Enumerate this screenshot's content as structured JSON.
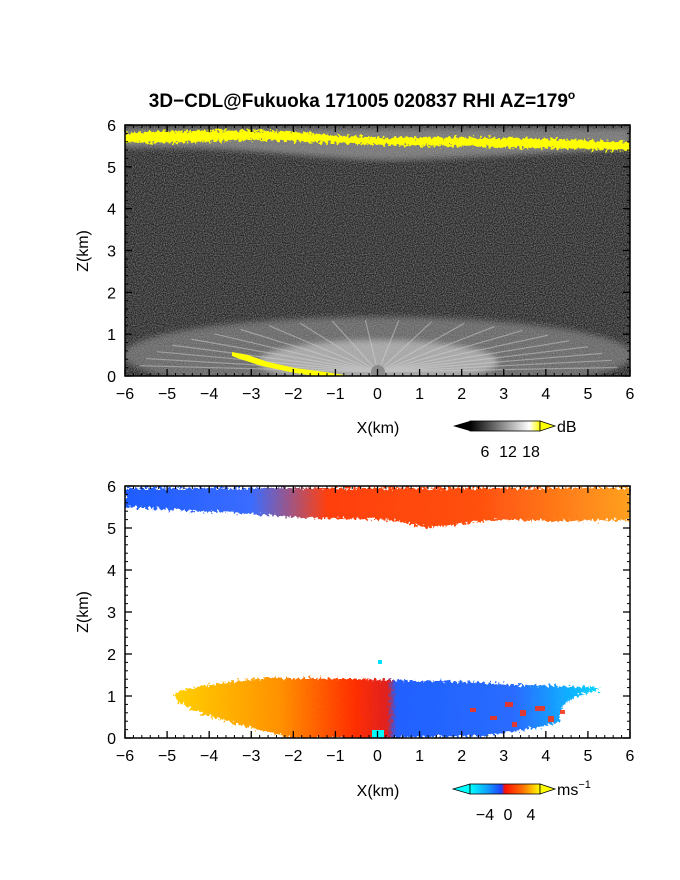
{
  "title": "3D−CDL@Fukuoka 171005 020837 RHI AZ=179",
  "title_degree": "o",
  "chart_data": [
    {
      "type": "heatmap",
      "name": "reflectivity",
      "xlabel": "X(km)",
      "ylabel": "Z(km)",
      "xlim": [
        -6,
        6
      ],
      "ylim": [
        0,
        6
      ],
      "xticks": [
        "−6",
        "−5",
        "−4",
        "−3",
        "−2",
        "−1",
        "0",
        "1",
        "2",
        "3",
        "4",
        "5",
        "6"
      ],
      "yticks": [
        "0",
        "1",
        "2",
        "3",
        "4",
        "5",
        "6"
      ],
      "colorbar": {
        "unit": "dB",
        "ticks": [
          "6",
          "12",
          "18"
        ],
        "colors": [
          "#000000",
          "#303030",
          "#606060",
          "#909090",
          "#c0c0c0",
          "#f0f0f0",
          "#ffff00"
        ]
      },
      "features": [
        {
          "label": "yellow high-return layer",
          "x_range": [
            -6,
            6
          ],
          "z_range": [
            5.3,
            5.85
          ]
        },
        {
          "label": "boundary-layer returns",
          "x_range": [
            -6,
            6
          ],
          "z_range": [
            0,
            1.3
          ]
        },
        {
          "label": "ground clutter",
          "x_range": [
            -3.3,
            -0.6
          ],
          "z_range": [
            0,
            0.55
          ]
        }
      ]
    },
    {
      "type": "heatmap",
      "name": "doppler_velocity",
      "xlabel": "X(km)",
      "ylabel": "Z(km)",
      "xlim": [
        -6,
        6
      ],
      "ylim": [
        0,
        6
      ],
      "xticks": [
        "−6",
        "−5",
        "−4",
        "−3",
        "−2",
        "−1",
        "0",
        "1",
        "2",
        "3",
        "4",
        "5",
        "6"
      ],
      "yticks": [
        "0",
        "1",
        "2",
        "3",
        "4",
        "5",
        "6"
      ],
      "colorbar": {
        "unit": "ms",
        "unit_exponent": "−1",
        "ticks": [
          "−4",
          "0",
          "4"
        ],
        "colors": [
          "#00ffff",
          "#00a0ff",
          "#2050ff",
          "#ff2000",
          "#ff6000",
          "#ffb000",
          "#ffff00"
        ]
      },
      "features": [
        {
          "label": "upper layer velocity",
          "x_range": [
            -6,
            6
          ],
          "z_range": [
            5.1,
            6
          ]
        },
        {
          "label": "positive (receding) flow",
          "x_range": [
            -5,
            0
          ],
          "z_range": [
            0,
            1.4
          ]
        },
        {
          "label": "negative (approaching) flow",
          "x_range": [
            0,
            5
          ],
          "z_range": [
            0,
            1.3
          ]
        }
      ]
    }
  ]
}
